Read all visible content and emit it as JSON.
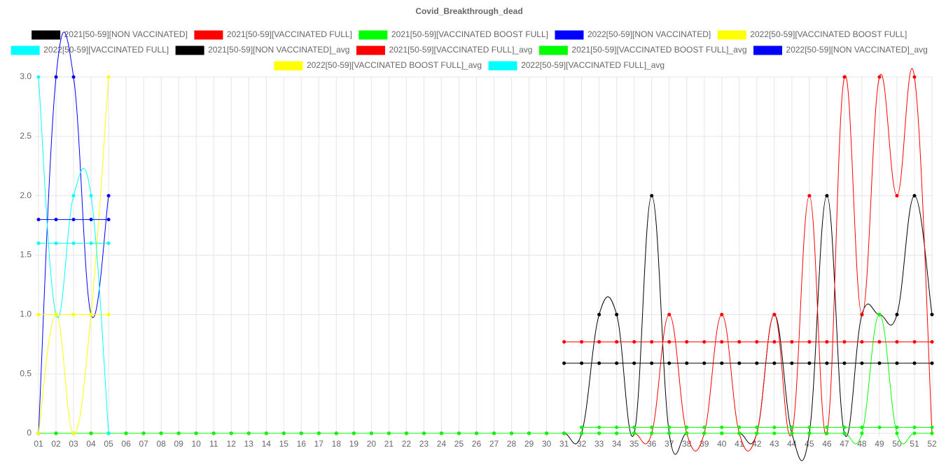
{
  "chart_data": {
    "type": "line",
    "title": "Covid_Breakthrough_dead",
    "categories": [
      "01",
      "02",
      "03",
      "04",
      "05",
      "06",
      "07",
      "08",
      "09",
      "10",
      "11",
      "12",
      "13",
      "14",
      "15",
      "16",
      "17",
      "18",
      "19",
      "20",
      "21",
      "22",
      "23",
      "24",
      "25",
      "26",
      "27",
      "28",
      "29",
      "30",
      "31",
      "32",
      "33",
      "34",
      "35",
      "36",
      "37",
      "38",
      "39",
      "40",
      "41",
      "42",
      "43",
      "44",
      "45",
      "46",
      "47",
      "48",
      "49",
      "50",
      "51",
      "52"
    ],
    "ylim": [
      0,
      3
    ],
    "yticks": [
      0,
      0.5,
      {
        "value": 1,
        "label": "1.0"
      },
      1.5,
      {
        "value": 2,
        "label": "2.0"
      },
      2.5,
      {
        "value": 3,
        "label": "3.0"
      }
    ],
    "grid": true,
    "legend": "top",
    "series": [
      {
        "name": "2021[50-59][NON VACCINATED]",
        "color": "#000000",
        "values": [
          0,
          0,
          0,
          0,
          0,
          0,
          0,
          0,
          0,
          0,
          0,
          0,
          0,
          0,
          0,
          0,
          0,
          0,
          0,
          0,
          0,
          0,
          0,
          0,
          0,
          0,
          0,
          0,
          0,
          0,
          0,
          0,
          1,
          1,
          0,
          2,
          0,
          0,
          0,
          0,
          0,
          0,
          1,
          0,
          0,
          2,
          0,
          1,
          1,
          1,
          2,
          1
        ]
      },
      {
        "name": "2021[50-59][VACCINATED FULL]",
        "color": "#ff0000",
        "values": [
          0,
          0,
          0,
          0,
          0,
          0,
          0,
          0,
          0,
          0,
          0,
          0,
          0,
          0,
          0,
          0,
          0,
          0,
          0,
          0,
          0,
          0,
          0,
          0,
          0,
          0,
          0,
          0,
          0,
          0,
          0,
          0,
          0,
          0,
          0,
          0,
          1,
          0,
          0,
          1,
          0,
          0,
          1,
          0,
          2,
          0,
          3,
          1,
          3,
          2,
          3,
          0
        ]
      },
      {
        "name": "2021[50-59][VACCINATED BOOST FULL]",
        "color": "#00ff00",
        "values": [
          0,
          0,
          0,
          0,
          0,
          0,
          0,
          0,
          0,
          0,
          0,
          0,
          0,
          0,
          0,
          0,
          0,
          0,
          0,
          0,
          0,
          0,
          0,
          0,
          0,
          0,
          0,
          0,
          0,
          0,
          0,
          0,
          0,
          0,
          0,
          0,
          0,
          0,
          0,
          0,
          0,
          0,
          0,
          0,
          0,
          0,
          0,
          0,
          1,
          0,
          0,
          0
        ]
      },
      {
        "name": "2022[50-59][NON VACCINATED]",
        "color": "#0000ff",
        "values": [
          0,
          3,
          3,
          1,
          2,
          null,
          null,
          null,
          null,
          null,
          null,
          null,
          null,
          null,
          null,
          null,
          null,
          null,
          null,
          null,
          null,
          null,
          null,
          null,
          null,
          null,
          null,
          null,
          null,
          null,
          null,
          null,
          null,
          null,
          null,
          null,
          null,
          null,
          null,
          null,
          null,
          null,
          null,
          null,
          null,
          null,
          null,
          null,
          null,
          null,
          null,
          null
        ]
      },
      {
        "name": "2022[50-59][VACCINATED BOOST FULL]",
        "color": "#ffff00",
        "values": [
          0,
          1,
          0,
          1,
          3,
          null,
          null,
          null,
          null,
          null,
          null,
          null,
          null,
          null,
          null,
          null,
          null,
          null,
          null,
          null,
          null,
          null,
          null,
          null,
          null,
          null,
          null,
          null,
          null,
          null,
          null,
          null,
          null,
          null,
          null,
          null,
          null,
          null,
          null,
          null,
          null,
          null,
          null,
          null,
          null,
          null,
          null,
          null,
          null,
          null,
          null,
          null
        ]
      },
      {
        "name": "2022[50-59][VACCINATED FULL]",
        "color": "#00ffff",
        "values": [
          3,
          1,
          2,
          2,
          0,
          null,
          null,
          null,
          null,
          null,
          null,
          null,
          null,
          null,
          null,
          null,
          null,
          null,
          null,
          null,
          null,
          null,
          null,
          null,
          null,
          null,
          null,
          null,
          null,
          null,
          null,
          null,
          null,
          null,
          null,
          null,
          null,
          null,
          null,
          null,
          null,
          null,
          null,
          null,
          null,
          null,
          null,
          null,
          null,
          null,
          null,
          null
        ]
      },
      {
        "name": "2021[50-59][NON VACCINATED]_avg",
        "color": "#000000",
        "values": [
          null,
          null,
          null,
          null,
          null,
          null,
          null,
          null,
          null,
          null,
          null,
          null,
          null,
          null,
          null,
          null,
          null,
          null,
          null,
          null,
          null,
          null,
          null,
          null,
          null,
          null,
          null,
          null,
          null,
          null,
          0.59,
          0.59,
          0.59,
          0.59,
          0.59,
          0.59,
          0.59,
          0.59,
          0.59,
          0.59,
          0.59,
          0.59,
          0.59,
          0.59,
          0.59,
          0.59,
          0.59,
          0.59,
          0.59,
          0.59,
          0.59,
          0.59
        ]
      },
      {
        "name": "2021[50-59][VACCINATED FULL]_avg",
        "color": "#ff0000",
        "values": [
          null,
          null,
          null,
          null,
          null,
          null,
          null,
          null,
          null,
          null,
          null,
          null,
          null,
          null,
          null,
          null,
          null,
          null,
          null,
          null,
          null,
          null,
          null,
          null,
          null,
          null,
          null,
          null,
          null,
          null,
          0.77,
          0.77,
          0.77,
          0.77,
          0.77,
          0.77,
          0.77,
          0.77,
          0.77,
          0.77,
          0.77,
          0.77,
          0.77,
          0.77,
          0.77,
          0.77,
          0.77,
          0.77,
          0.77,
          0.77,
          0.77,
          0.77
        ]
      },
      {
        "name": "2021[50-59][VACCINATED BOOST FULL]_avg",
        "color": "#00ff00",
        "values": [
          null,
          null,
          null,
          null,
          null,
          null,
          null,
          null,
          null,
          null,
          null,
          null,
          null,
          null,
          null,
          null,
          null,
          null,
          null,
          null,
          null,
          null,
          null,
          null,
          null,
          null,
          null,
          null,
          null,
          null,
          null,
          0.05,
          0.05,
          0.05,
          0.05,
          0.05,
          0.05,
          0.05,
          0.05,
          0.05,
          0.05,
          0.05,
          0.05,
          0.05,
          0.05,
          0.05,
          0.05,
          0.05,
          0.05,
          0.05,
          0.05,
          0.05
        ]
      },
      {
        "name": "2022[50-59][NON VACCINATED]_avg",
        "color": "#0000ff",
        "values": [
          1.8,
          1.8,
          1.8,
          1.8,
          1.8,
          null,
          null,
          null,
          null,
          null,
          null,
          null,
          null,
          null,
          null,
          null,
          null,
          null,
          null,
          null,
          null,
          null,
          null,
          null,
          null,
          null,
          null,
          null,
          null,
          null,
          null,
          null,
          null,
          null,
          null,
          null,
          null,
          null,
          null,
          null,
          null,
          null,
          null,
          null,
          null,
          null,
          null,
          null,
          null,
          null,
          null,
          null
        ]
      },
      {
        "name": "2022[50-59][VACCINATED BOOST FULL]_avg",
        "color": "#ffff00",
        "values": [
          1,
          1,
          1,
          1,
          1,
          null,
          null,
          null,
          null,
          null,
          null,
          null,
          null,
          null,
          null,
          null,
          null,
          null,
          null,
          null,
          null,
          null,
          null,
          null,
          null,
          null,
          null,
          null,
          null,
          null,
          null,
          null,
          null,
          null,
          null,
          null,
          null,
          null,
          null,
          null,
          null,
          null,
          null,
          null,
          null,
          null,
          null,
          null,
          null,
          null,
          null,
          null
        ]
      },
      {
        "name": "2022[50-59][VACCINATED FULL]_avg",
        "color": "#00ffff",
        "values": [
          1.6,
          1.6,
          1.6,
          1.6,
          1.6,
          null,
          null,
          null,
          null,
          null,
          null,
          null,
          null,
          null,
          null,
          null,
          null,
          null,
          null,
          null,
          null,
          null,
          null,
          null,
          null,
          null,
          null,
          null,
          null,
          null,
          null,
          null,
          null,
          null,
          null,
          null,
          null,
          null,
          null,
          null,
          null,
          null,
          null,
          null,
          null,
          null,
          null,
          null,
          null,
          null,
          null,
          null
        ]
      }
    ]
  }
}
